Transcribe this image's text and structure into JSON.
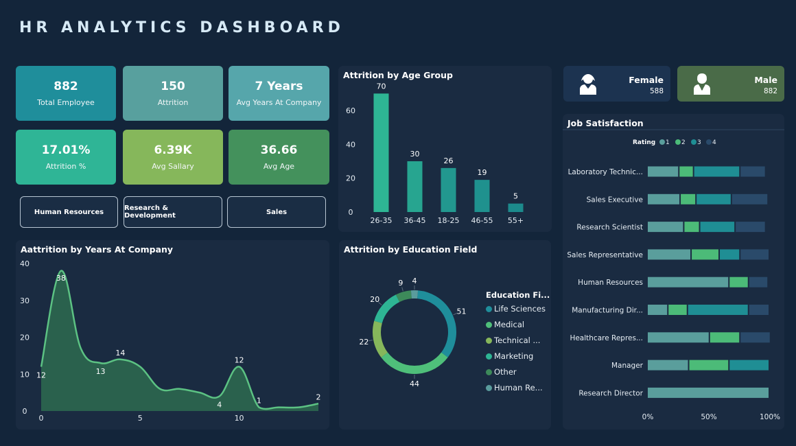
{
  "header": {
    "title": "HR ANALYTICS DASHBOARD"
  },
  "kpis": [
    {
      "value": "882",
      "label": "Total Employee",
      "color": "#1f8e9b"
    },
    {
      "value": "150",
      "label": "Attrition",
      "color": "#58a09e"
    },
    {
      "value": "7 Years",
      "label": "Avg Years At Company",
      "color": "#56a6ab"
    },
    {
      "value": "17.01%",
      "label": "Attrition %",
      "color": "#2fb596"
    },
    {
      "value": "6.39K",
      "label": "Avg Sallary",
      "color": "#86b75b"
    },
    {
      "value": "36.66",
      "label": "Avg Age",
      "color": "#44915c"
    }
  ],
  "departments": [
    "Human Resources",
    "Research & Development",
    "Sales"
  ],
  "gender": {
    "female": {
      "label": "Female",
      "value": "588",
      "color": "#1c3350"
    },
    "male": {
      "label": "Male",
      "value": "882",
      "color": "#4a6b48"
    }
  },
  "colors": {
    "background": "#13253a",
    "panel": "#1a2b41",
    "teal": "#1f8e8c",
    "green": "#4fbf7a",
    "aqua": "#2eb594",
    "line_green": "#5cc283"
  },
  "chart_data": [
    {
      "id": "age",
      "type": "bar",
      "title": "Attrition by Age Group",
      "categories": [
        "26-35",
        "36-45",
        "18-25",
        "46-55",
        "55+"
      ],
      "values": [
        70,
        30,
        26,
        19,
        5
      ],
      "yticks": [
        0,
        20,
        40,
        60
      ],
      "ylim": [
        0,
        75
      ],
      "bar_colors": [
        "#2eb594",
        "#27a590",
        "#22988f",
        "#1f918e",
        "#1c8a8c"
      ]
    },
    {
      "id": "years",
      "type": "area",
      "title": "Aattrition by Years At Company",
      "x": [
        0,
        1,
        2,
        3,
        4,
        5,
        6,
        7,
        8,
        9,
        10,
        11,
        12,
        13,
        14
      ],
      "values": [
        12,
        38,
        17,
        13,
        14,
        12,
        6,
        6,
        5,
        4,
        12,
        1,
        1,
        1,
        2
      ],
      "point_labels": [
        {
          "x": 0,
          "text": "12"
        },
        {
          "x": 1,
          "text": "38"
        },
        {
          "x": 3,
          "text": "13"
        },
        {
          "x": 4,
          "text": "14"
        },
        {
          "x": 9,
          "text": "4"
        },
        {
          "x": 10,
          "text": "12"
        },
        {
          "x": 11,
          "text": "1"
        },
        {
          "x": 14,
          "text": "2"
        }
      ],
      "xticks": [
        0,
        5,
        10
      ],
      "yticks": [
        0,
        10,
        20,
        30,
        40
      ],
      "xlim": [
        0,
        14
      ],
      "ylim": [
        0,
        40
      ]
    },
    {
      "id": "education",
      "type": "pie",
      "title": "Attrition by Education Field",
      "legend_title": "Education Fi...",
      "labels": [
        "Life Sciences",
        "Medical",
        "Technical ...",
        "Marketing",
        "Other",
        "Human Re..."
      ],
      "values": [
        51,
        44,
        22,
        20,
        9,
        4
      ],
      "colors": [
        "#1f8e9b",
        "#4fbf7a",
        "#86b75b",
        "#2eb594",
        "#3d8a5a",
        "#5a9c9c"
      ]
    },
    {
      "id": "satisfaction",
      "type": "bar",
      "title": "Job Satisfaction",
      "legend_title": "Rating",
      "series_names": [
        "1",
        "2",
        "3",
        "4"
      ],
      "series_colors": [
        "#5a9e9c",
        "#4cbb78",
        "#1f8e94",
        "#2a4a6a"
      ],
      "categories": [
        "Laboratory Technic...",
        "Sales Executive",
        "Research Scientist",
        "Sales Representative",
        "Human Resources",
        "Manufacturing Dir...",
        "Healthcare Repres...",
        "Manager",
        "Research Director"
      ],
      "shares": [
        [
          0.26,
          0.12,
          0.38,
          0.21
        ],
        [
          0.27,
          0.13,
          0.29,
          0.3
        ],
        [
          0.3,
          0.13,
          0.29,
          0.25
        ],
        [
          0.36,
          0.23,
          0.17,
          0.24
        ],
        [
          0.67,
          0.16,
          0.0,
          0.16
        ],
        [
          0.17,
          0.16,
          0.5,
          0.17
        ],
        [
          0.51,
          0.25,
          0.0,
          0.25
        ],
        [
          0.34,
          0.33,
          0.33,
          0.0
        ],
        [
          1.0,
          0.0,
          0.0,
          0.0
        ]
      ],
      "xticks": [
        "0%",
        "50%",
        "100%"
      ]
    }
  ]
}
